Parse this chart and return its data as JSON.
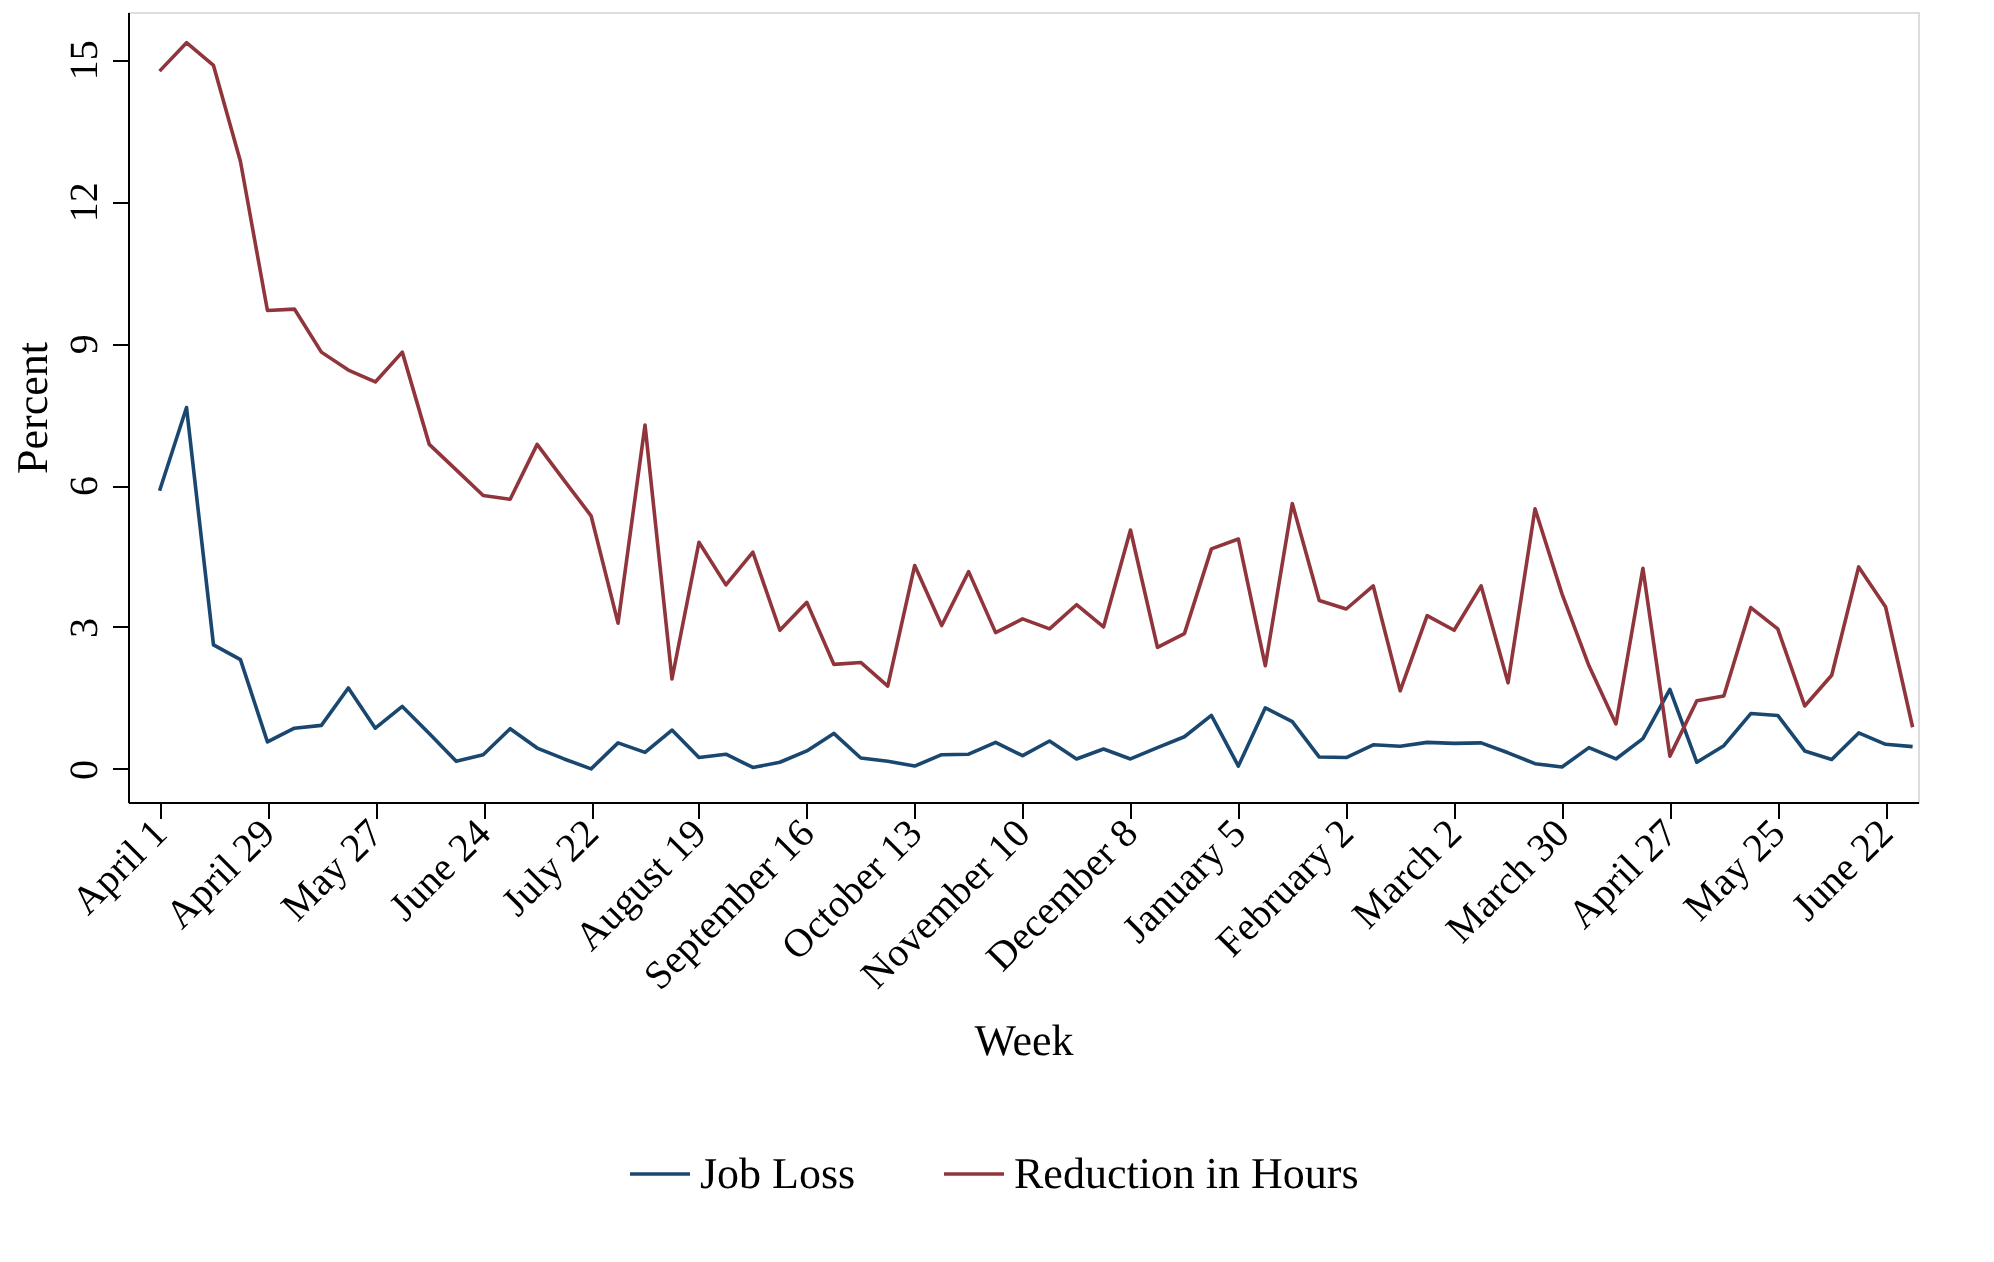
{
  "chart_data": {
    "type": "line",
    "xlabel": "Week",
    "ylabel": "Percent",
    "categories": [
      "April 1",
      null,
      null,
      null,
      "April 29",
      null,
      null,
      null,
      "May 27",
      null,
      null,
      null,
      "June 24",
      null,
      null,
      null,
      "July 22",
      null,
      null,
      null,
      "August 19",
      null,
      null,
      null,
      "September 16",
      null,
      null,
      null,
      "October 13",
      null,
      null,
      null,
      "November 10",
      null,
      null,
      null,
      "December 8",
      null,
      null,
      null,
      "January 5",
      null,
      null,
      null,
      "February 2",
      null,
      null,
      null,
      "March 2",
      null,
      null,
      null,
      "March 30",
      null,
      null,
      null,
      "April 27",
      null,
      null,
      null,
      "May 25",
      null,
      null,
      null,
      "June 22",
      null
    ],
    "series": [
      {
        "name": "Job Loss",
        "color": "#1a476f",
        "values": [
          5.88,
          7.64,
          2.62,
          2.31,
          0.57,
          0.86,
          0.92,
          1.71,
          0.86,
          1.32,
          0.75,
          0.16,
          0.3,
          0.85,
          0.44,
          0.21,
          0.0,
          0.55,
          0.35,
          0.82,
          0.24,
          0.31,
          0.03,
          0.14,
          0.38,
          0.75,
          0.23,
          0.16,
          0.06,
          0.3,
          0.31,
          0.56,
          0.28,
          0.59,
          0.21,
          0.42,
          0.21,
          0.45,
          0.68,
          1.13,
          0.06,
          1.29,
          1.0,
          0.25,
          0.24,
          0.51,
          0.48,
          0.56,
          0.54,
          0.55,
          0.34,
          0.11,
          0.04,
          0.45,
          0.21,
          0.64,
          1.68,
          0.14,
          0.49,
          1.17,
          1.13,
          0.38,
          0.2,
          0.76,
          0.52,
          0.47
        ]
      },
      {
        "name": "Reduction in Hours",
        "color": "#90353b",
        "values": [
          14.75,
          15.35,
          14.87,
          12.84,
          9.69,
          9.72,
          8.81,
          8.43,
          8.18,
          8.81,
          6.86,
          6.32,
          5.78,
          5.7,
          6.86,
          6.1,
          5.35,
          3.08,
          7.27,
          1.9,
          4.79,
          3.89,
          4.58,
          2.93,
          3.52,
          2.21,
          2.25,
          1.75,
          4.3,
          3.03,
          4.17,
          2.88,
          3.17,
          2.96,
          3.47,
          3.0,
          5.05,
          2.57,
          2.86,
          4.65,
          4.86,
          2.18,
          5.61,
          3.56,
          3.38,
          3.87,
          1.65,
          3.24,
          2.93,
          3.87,
          1.82,
          5.5,
          3.7,
          2.18,
          0.95,
          4.24,
          0.27,
          1.44,
          1.54,
          3.41,
          2.96,
          1.33,
          1.98,
          4.27,
          3.42,
          0.88
        ]
      }
    ],
    "ylim": [
      -0.7,
      16
    ],
    "yticks": [
      0,
      3,
      6,
      9,
      12,
      15
    ],
    "grid": false,
    "legend": "bottom",
    "marker": "none",
    "line_style": "solid"
  }
}
